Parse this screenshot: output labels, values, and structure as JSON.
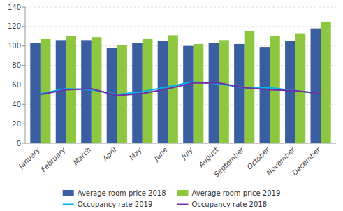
{
  "chart_data": {
    "type": "bar",
    "categories": [
      "January",
      "February",
      "March",
      "April",
      "May",
      "June",
      "July",
      "August",
      "September",
      "October",
      "November",
      "December"
    ],
    "series": [
      {
        "name": "Average room price 2018",
        "type": "bar",
        "color": "#3a5fa0",
        "values": [
          103,
          106,
          106,
          98,
          103,
          105,
          100,
          103,
          102,
          99,
          105,
          118
        ]
      },
      {
        "name": "Average room price 2019",
        "type": "bar",
        "color": "#8dc63f",
        "values": [
          107,
          110,
          109,
          101,
          107,
          111,
          102,
          106,
          115,
          110,
          113,
          125
        ]
      },
      {
        "name": "Occupancy rate 2019",
        "type": "line",
        "color": "#00b0f0",
        "values": [
          51,
          56,
          55,
          50,
          53,
          58,
          63,
          61,
          57,
          57,
          54,
          51
        ]
      },
      {
        "name": "Occupancy rate 2018",
        "type": "line",
        "color": "#7030a0",
        "values": [
          50,
          55,
          56,
          49,
          51,
          56,
          62,
          62,
          57,
          55,
          54,
          51
        ]
      }
    ],
    "ylim": [
      0,
      140
    ],
    "yticks": [
      0,
      20,
      40,
      60,
      80,
      100,
      120,
      140
    ],
    "grid": true,
    "legend": "bottom"
  }
}
